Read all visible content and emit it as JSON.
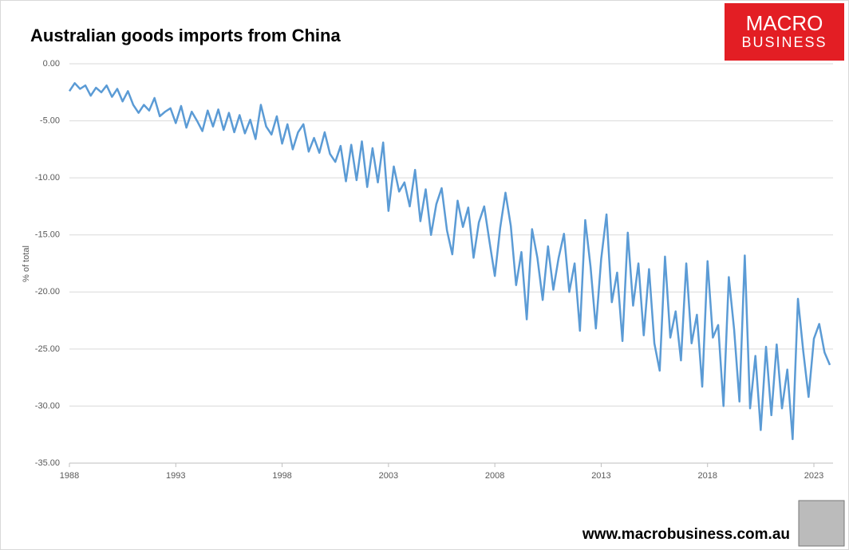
{
  "chart_data": {
    "type": "line",
    "title": "Australian goods imports from China",
    "y_label": "% of total",
    "logo": [
      "MACRO",
      "BUSINESS"
    ],
    "footer": "www.macrobusiness.com.au",
    "x": [
      1988,
      1988.25,
      1988.5,
      1988.75,
      1989,
      1989.25,
      1989.5,
      1989.75,
      1990,
      1990.25,
      1990.5,
      1990.75,
      1991,
      1991.25,
      1991.5,
      1991.75,
      1992,
      1992.25,
      1992.5,
      1992.75,
      1993,
      1993.25,
      1993.5,
      1993.75,
      1994,
      1994.25,
      1994.5,
      1994.75,
      1995,
      1995.25,
      1995.5,
      1995.75,
      1996,
      1996.25,
      1996.5,
      1996.75,
      1997,
      1997.25,
      1997.5,
      1997.75,
      1998,
      1998.25,
      1998.5,
      1998.75,
      1999,
      1999.25,
      1999.5,
      1999.75,
      2000,
      2000.25,
      2000.5,
      2000.75,
      2001,
      2001.25,
      2001.5,
      2001.75,
      2002,
      2002.25,
      2002.5,
      2002.75,
      2003,
      2003.25,
      2003.5,
      2003.75,
      2004,
      2004.25,
      2004.5,
      2004.75,
      2005,
      2005.25,
      2005.5,
      2005.75,
      2006,
      2006.25,
      2006.5,
      2006.75,
      2007,
      2007.25,
      2007.5,
      2007.75,
      2008,
      2008.25,
      2008.5,
      2008.75,
      2009,
      2009.25,
      2009.5,
      2009.75,
      2010,
      2010.25,
      2010.5,
      2010.75,
      2011,
      2011.25,
      2011.5,
      2011.75,
      2012,
      2012.25,
      2012.5,
      2012.75,
      2013,
      2013.25,
      2013.5,
      2013.75,
      2014,
      2014.25,
      2014.5,
      2014.75,
      2015,
      2015.25,
      2015.5,
      2015.75,
      2016,
      2016.25,
      2016.5,
      2016.75,
      2017,
      2017.25,
      2017.5,
      2017.75,
      2018,
      2018.25,
      2018.5,
      2018.75,
      2019,
      2019.25,
      2019.5,
      2019.75,
      2020,
      2020.25,
      2020.5,
      2020.75,
      2021,
      2021.25,
      2021.5,
      2021.75,
      2022,
      2022.25,
      2022.5,
      2022.75,
      2023,
      2023.25,
      2023.5,
      2023.75
    ],
    "series": [
      {
        "name": "% of total",
        "color": "#5b9bd5",
        "values": [
          -2.4,
          -1.7,
          -2.2,
          -1.9,
          -2.8,
          -2.1,
          -2.5,
          -1.9,
          -2.9,
          -2.2,
          -3.3,
          -2.4,
          -3.6,
          -4.3,
          -3.6,
          -4.1,
          -3.0,
          -4.6,
          -4.2,
          -3.9,
          -5.2,
          -3.7,
          -5.6,
          -4.2,
          -5.0,
          -5.9,
          -4.1,
          -5.5,
          -4.0,
          -5.8,
          -4.3,
          -6.0,
          -4.5,
          -6.1,
          -4.9,
          -6.6,
          -3.6,
          -5.5,
          -6.2,
          -4.6,
          -7.0,
          -5.3,
          -7.5,
          -6.0,
          -5.3,
          -7.7,
          -6.5,
          -7.8,
          -6.0,
          -7.9,
          -8.6,
          -7.2,
          -10.3,
          -7.1,
          -10.2,
          -6.8,
          -10.8,
          -7.4,
          -10.4,
          -6.9,
          -12.9,
          -9.0,
          -11.2,
          -10.4,
          -12.5,
          -9.3,
          -13.8,
          -11.0,
          -15.0,
          -12.3,
          -10.9,
          -14.6,
          -16.7,
          -12.0,
          -14.3,
          -12.6,
          -17.0,
          -13.9,
          -12.5,
          -15.6,
          -18.6,
          -14.4,
          -11.3,
          -14.2,
          -19.4,
          -16.5,
          -22.4,
          -14.5,
          -17.0,
          -20.7,
          -16.0,
          -19.8,
          -17.0,
          -14.9,
          -20.0,
          -17.5,
          -23.4,
          -13.7,
          -17.8,
          -23.2,
          -17.1,
          -13.2,
          -20.9,
          -18.3,
          -24.3,
          -14.8,
          -21.2,
          -17.5,
          -23.8,
          -18.0,
          -24.5,
          -26.9,
          -16.9,
          -24.0,
          -21.7,
          -26.0,
          -17.5,
          -24.5,
          -22.0,
          -28.3,
          -17.3,
          -24.0,
          -22.9,
          -30.0,
          -18.7,
          -23.3,
          -29.6,
          -16.8,
          -30.2,
          -25.6,
          -32.1,
          -24.8,
          -30.8,
          -24.6,
          -30.2,
          -26.8,
          -32.9,
          -20.6,
          -25.2,
          -29.2,
          -24.1,
          -22.8,
          -25.3,
          -26.4
        ]
      }
    ],
    "xlim": [
      1988,
      2023.9
    ],
    "xticks": [
      1988,
      1993,
      1998,
      2003,
      2008,
      2013,
      2018,
      2023
    ],
    "ylim": [
      -35,
      0
    ],
    "yticks": [
      {
        "value": 0,
        "label": "0.00"
      },
      {
        "value": -5,
        "label": "-5.00"
      },
      {
        "value": -10,
        "label": "-10.00"
      },
      {
        "value": -15,
        "label": "-15.00"
      },
      {
        "value": -20,
        "label": "-20.00"
      },
      {
        "value": -25,
        "label": "-25.00"
      },
      {
        "value": -30,
        "label": "-30.00"
      },
      {
        "value": -35,
        "label": "-35.00"
      }
    ],
    "grid": true
  }
}
